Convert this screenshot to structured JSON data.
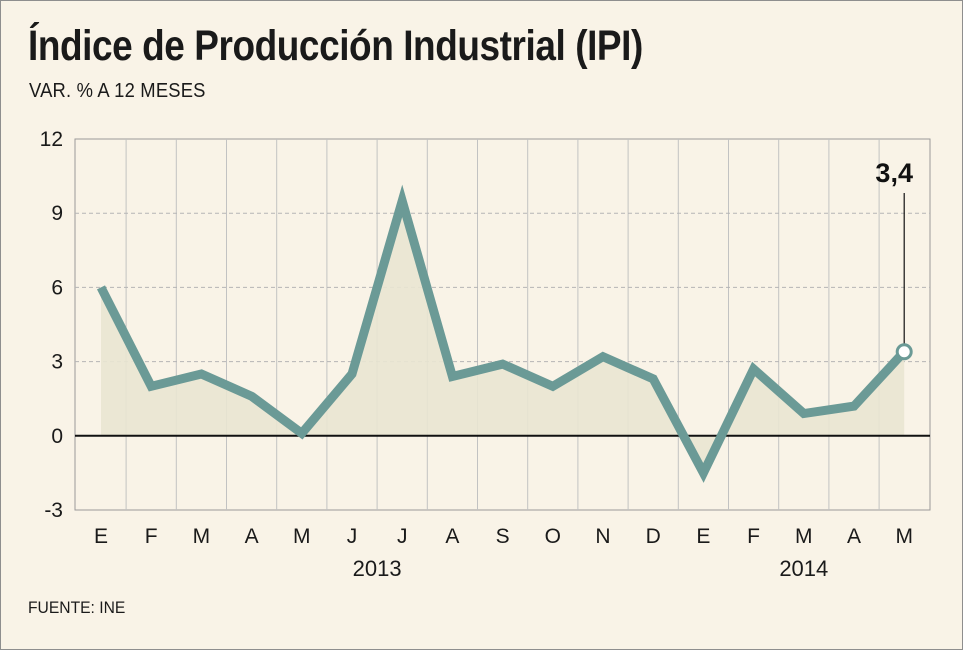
{
  "title": "Índice de Producción Industrial (IPI)",
  "subtitle": "VAR. % A 12 MESES",
  "source": "FUENTE: INE",
  "colors": {
    "background": "#f9f3e7",
    "line": "#6b9a96",
    "area_fill": "#e9e6d2",
    "grid": "#b5b5b5",
    "zero_line": "#111111"
  },
  "chart_data": {
    "type": "area",
    "categories": [
      "E",
      "F",
      "M",
      "A",
      "M",
      "J",
      "J",
      "A",
      "S",
      "O",
      "N",
      "D",
      "E",
      "F",
      "M",
      "A",
      "M"
    ],
    "values": [
      6.0,
      2.0,
      2.5,
      1.6,
      0.1,
      2.5,
      9.5,
      2.4,
      2.9,
      2.0,
      3.2,
      2.3,
      -1.5,
      2.7,
      0.9,
      1.2,
      3.4
    ],
    "year_groups": [
      {
        "label": "2013",
        "start": 0,
        "end": 11
      },
      {
        "label": "2014",
        "start": 12,
        "end": 16
      }
    ],
    "y_ticks": [
      "12",
      "9",
      "6",
      "3",
      "0",
      "-3"
    ],
    "ylim": [
      -3,
      12
    ],
    "grid": true,
    "annotation": {
      "index": 16,
      "text": "3,4"
    },
    "xlabel": "",
    "ylabel": ""
  }
}
